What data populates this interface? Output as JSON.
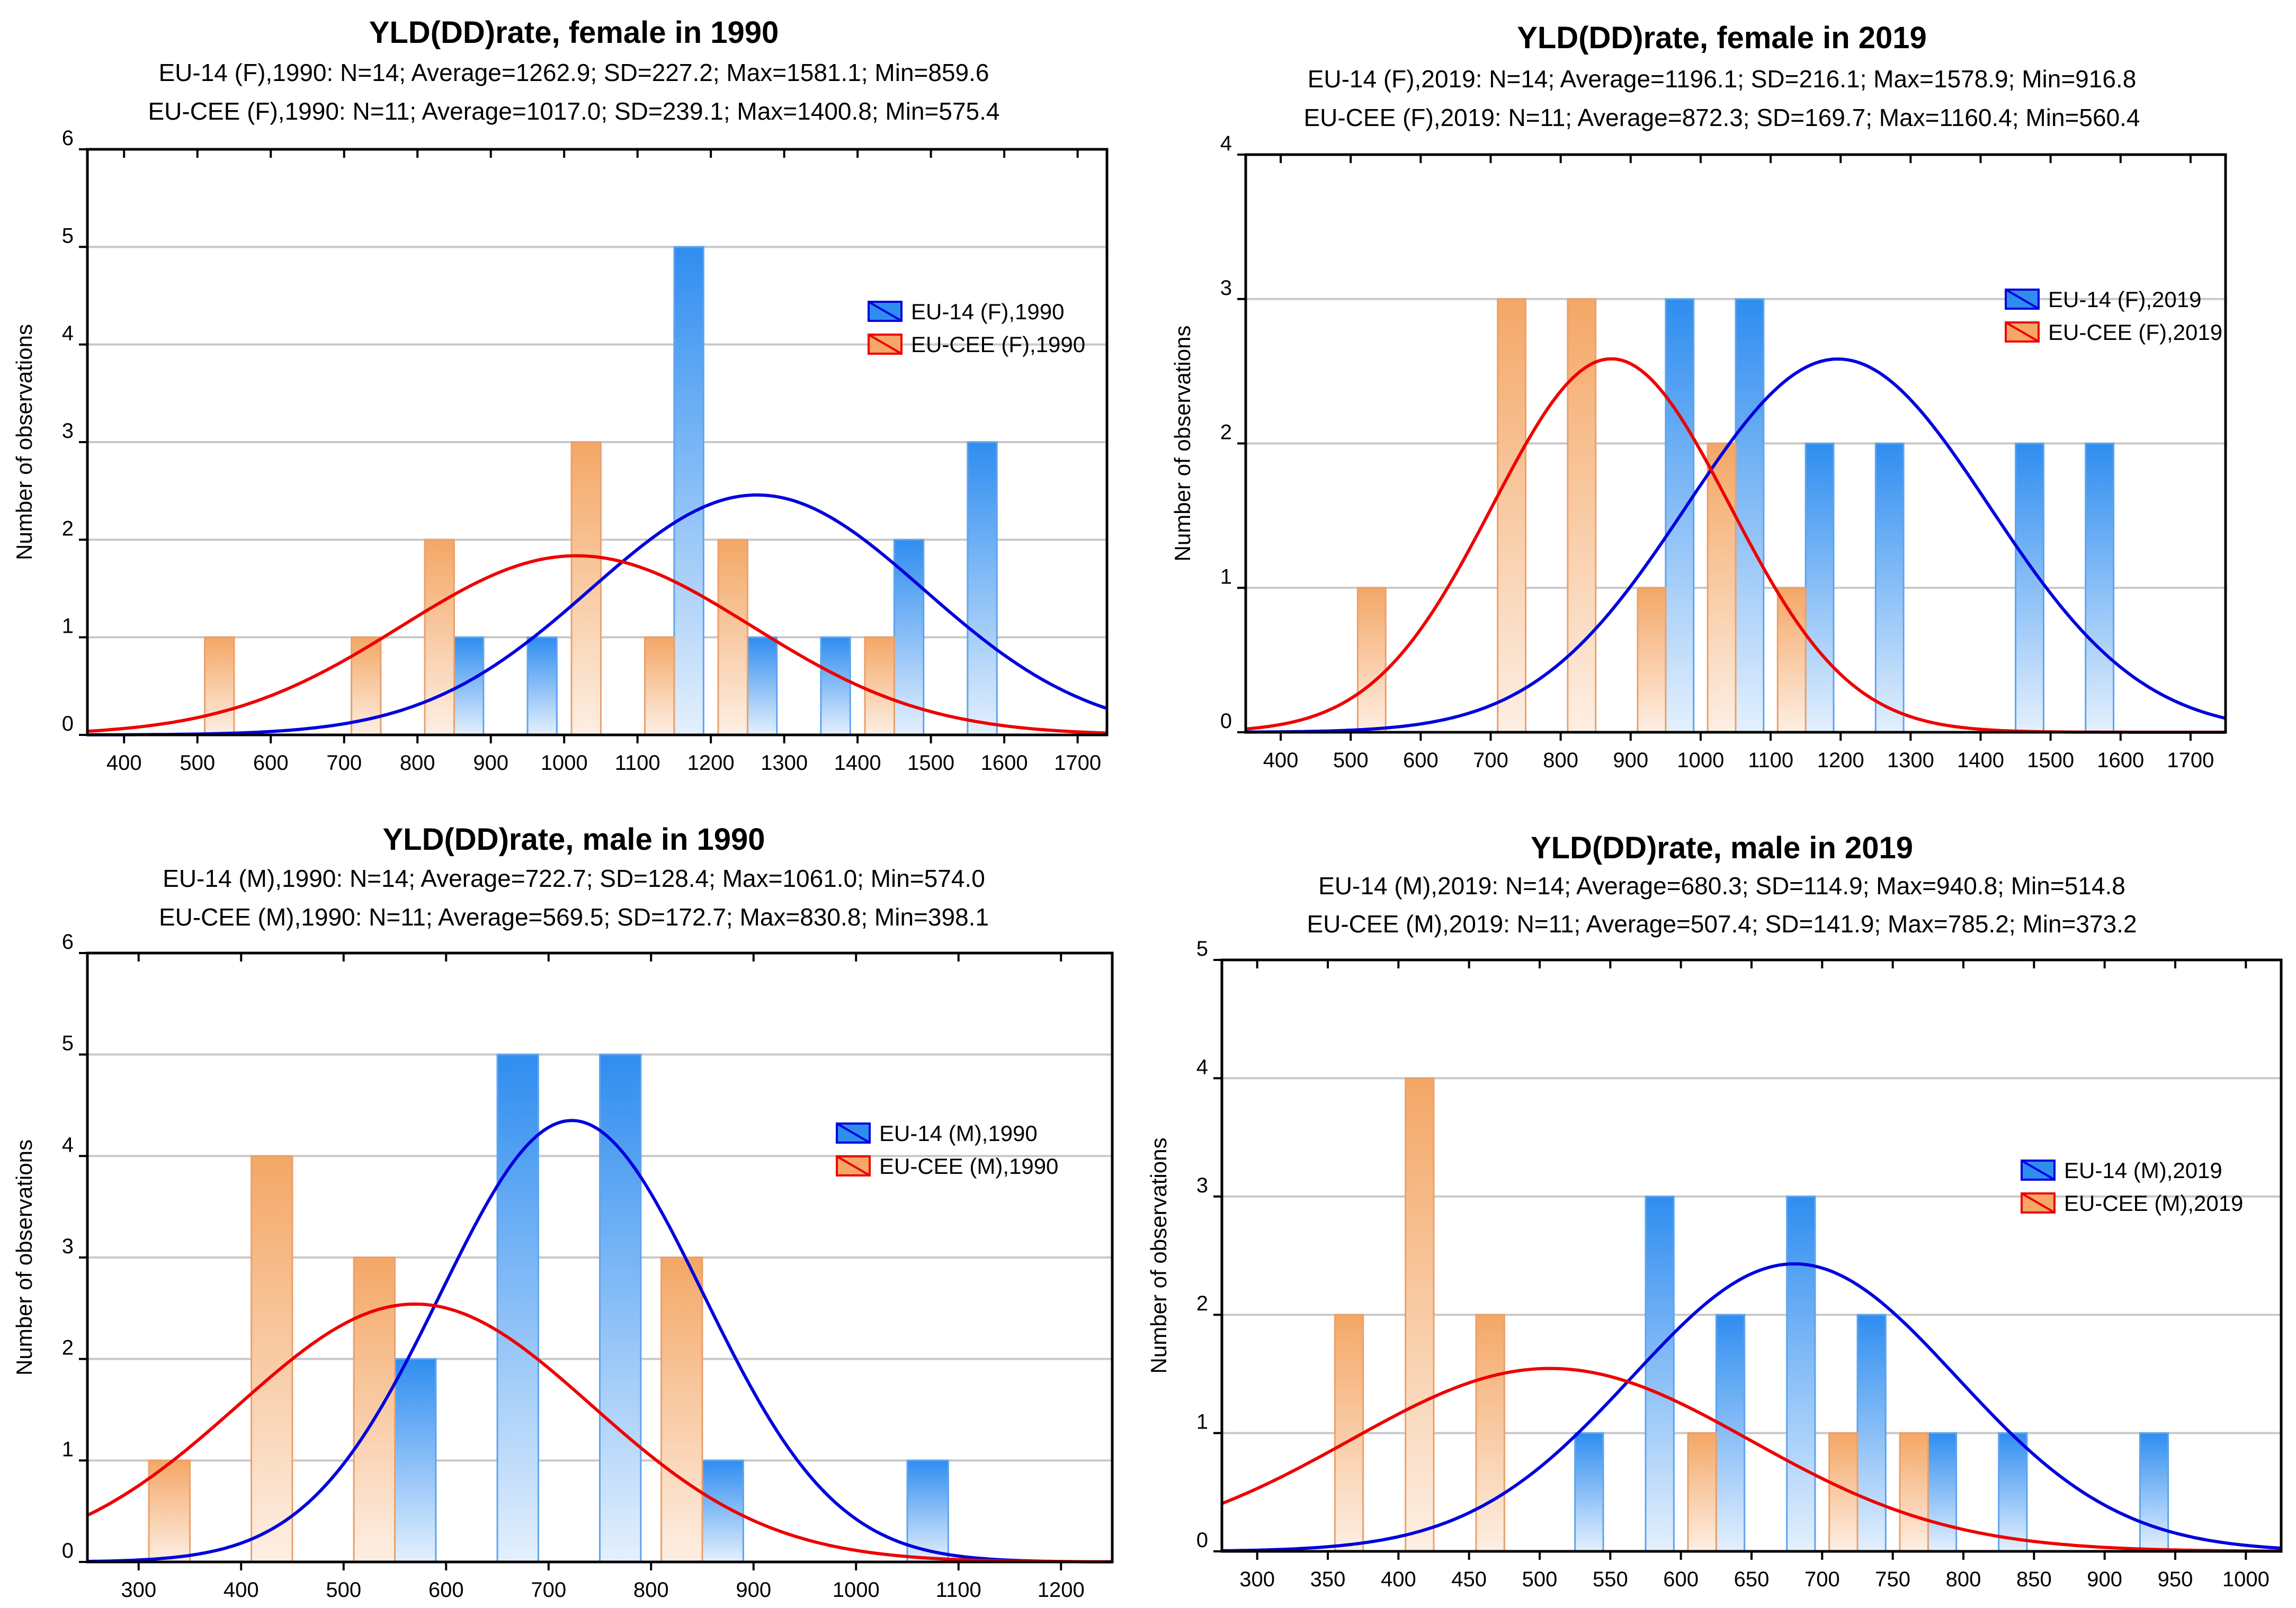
{
  "colors": {
    "eu14_bar_top": "#2F8DF0",
    "eu14_bar_bottom": "#E4F0FD",
    "eu14_bar_edge": "#5EA4EE",
    "eucee_bar_top": "#F4A766",
    "eucee_bar_bottom": "#FDEFE4",
    "eucee_bar_edge": "#EBA06A",
    "eu14_curve": "#0000DD",
    "eucee_curve": "#EE0000",
    "grid": "#C8C8C8"
  },
  "chart_data": [
    {
      "type": "bar",
      "title": "YLD(DD)rate, female in 1990",
      "stats": [
        "EU-14 (F),1990: N=14; Average=1262.9; SD=227.2; Max=1581.1; Min=859.6",
        "EU-CEE (F),1990: N=11; Average=1017.0; SD=239.1; Max=1400.8; Min=575.4"
      ],
      "ylabel": "Number of observations",
      "xlabel": "",
      "xlim": [
        350,
        1740
      ],
      "ylim": [
        0,
        6
      ],
      "grid": true,
      "bin_width": 100,
      "xticks": [
        400,
        500,
        600,
        700,
        800,
        900,
        1000,
        1100,
        1200,
        1300,
        1400,
        1500,
        1600,
        1700
      ],
      "yticks": [
        0,
        1,
        2,
        3,
        4,
        5,
        6
      ],
      "legend": [
        "EU-14 (F),1990",
        "EU-CEE (F),1990"
      ],
      "legend_position": "right",
      "series": [
        {
          "name": "EU-14 (F),1990",
          "x": [
            800,
            900,
            1100,
            1200,
            1300,
            1400,
            1500
          ],
          "values": [
            1,
            1,
            5,
            1,
            1,
            2,
            3
          ],
          "mean": 1262.9,
          "sd": 227.2,
          "n": 14
        },
        {
          "name": "EU-CEE (F),1990",
          "x": [
            500,
            700,
            800,
            1000,
            1100,
            1200,
            1400
          ],
          "values": [
            1,
            1,
            2,
            3,
            1,
            2,
            1
          ],
          "mean": 1017.0,
          "sd": 239.1,
          "n": 11
        }
      ]
    },
    {
      "type": "bar",
      "title": "YLD(DD)rate, female in 2019",
      "stats": [
        "EU-14 (F),2019: N=14; Average=1196.1; SD=216.1; Max=1578.9; Min=916.8",
        "EU-CEE (F),2019: N=11; Average=872.3; SD=169.7; Max=1160.4; Min=560.4"
      ],
      "ylabel": "Number of observations",
      "xlabel": "",
      "xlim": [
        350,
        1750
      ],
      "ylim": [
        0,
        4
      ],
      "grid": true,
      "bin_width": 100,
      "xticks": [
        400,
        500,
        600,
        700,
        800,
        900,
        1000,
        1100,
        1200,
        1300,
        1400,
        1500,
        1600,
        1700
      ],
      "yticks": [
        0,
        1,
        2,
        3,
        4
      ],
      "legend": [
        "EU-14 (F),2019",
        "EU-CEE (F),2019"
      ],
      "legend_position": "right",
      "series": [
        {
          "name": "EU-14 (F),2019",
          "x": [
            900,
            1000,
            1100,
            1200,
            1400,
            1500
          ],
          "values": [
            3,
            3,
            2,
            2,
            2,
            2
          ],
          "mean": 1196.1,
          "sd": 216.1,
          "n": 14
        },
        {
          "name": "EU-CEE (F),2019",
          "x": [
            500,
            700,
            800,
            900,
            1000,
            1100
          ],
          "values": [
            1,
            3,
            3,
            1,
            2,
            1
          ],
          "mean": 872.3,
          "sd": 169.7,
          "n": 11
        }
      ]
    },
    {
      "type": "bar",
      "title": "YLD(DD)rate, male in 1990",
      "stats": [
        "EU-14 (M),1990: N=14; Average=722.7; SD=128.4; Max=1061.0; Min=574.0",
        "EU-CEE (M),1990: N=11; Average=569.5; SD=172.7; Max=830.8; Min=398.1"
      ],
      "ylabel": "Number of observations",
      "xlabel": "",
      "xlim": [
        250,
        1250
      ],
      "ylim": [
        0,
        6
      ],
      "grid": true,
      "bin_width": 100,
      "xticks": [
        300,
        400,
        500,
        600,
        700,
        800,
        900,
        1000,
        1100,
        1200
      ],
      "yticks": [
        0,
        1,
        2,
        3,
        4,
        5,
        6
      ],
      "legend": [
        "EU-14 (M),1990",
        "EU-CEE (M),1990"
      ],
      "legend_position": "right",
      "series": [
        {
          "name": "EU-14 (M),1990",
          "x": [
            500,
            600,
            700,
            800,
            1000
          ],
          "values": [
            2,
            5,
            5,
            1,
            1
          ],
          "mean": 722.7,
          "sd": 128.4,
          "n": 14
        },
        {
          "name": "EU-CEE (M),1990",
          "x": [
            300,
            400,
            500,
            800
          ],
          "values": [
            1,
            4,
            3,
            3
          ],
          "mean": 569.5,
          "sd": 172.7,
          "n": 11
        }
      ]
    },
    {
      "type": "bar",
      "title": "YLD(DD)rate, male in 2019",
      "stats": [
        "EU-14 (M),2019: N=14; Average=680.3; SD=114.9; Max=940.8; Min=514.8",
        "EU-CEE (M),2019: N=11; Average=507.4; SD=141.9; Max=785.2; Min=373.2"
      ],
      "ylabel": "Number of observations",
      "xlabel": "",
      "xlim": [
        275,
        1025
      ],
      "ylim": [
        0,
        5
      ],
      "grid": true,
      "bin_width": 50,
      "xticks": [
        300,
        350,
        400,
        450,
        500,
        550,
        600,
        650,
        700,
        750,
        800,
        850,
        900,
        950,
        1000
      ],
      "yticks": [
        0,
        1,
        2,
        3,
        4,
        5
      ],
      "legend": [
        "EU-14 (M),2019",
        "EU-CEE (M),2019"
      ],
      "legend_position": "right",
      "series": [
        {
          "name": "EU-14 (M),2019",
          "x": [
            500,
            550,
            600,
            650,
            700,
            750,
            800,
            900
          ],
          "values": [
            1,
            3,
            2,
            3,
            2,
            1,
            1,
            1
          ],
          "mean": 680.3,
          "sd": 114.9,
          "n": 14
        },
        {
          "name": "EU-CEE (M),2019",
          "x": [
            350,
            400,
            450,
            600,
            700,
            750
          ],
          "values": [
            2,
            4,
            2,
            1,
            1,
            1
          ],
          "mean": 507.4,
          "sd": 141.9,
          "n": 11
        }
      ]
    }
  ]
}
